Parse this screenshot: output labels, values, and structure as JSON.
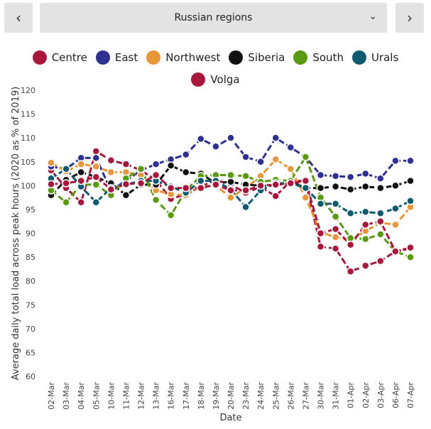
{
  "nav": {
    "prev_icon": "chevron-left-icon",
    "next_icon": "chevron-right-icon",
    "prev_glyph": "‹",
    "next_glyph": "›"
  },
  "selector": {
    "selected": "Russian regions",
    "icon": "chevron-down-icon",
    "glyph": "⌄"
  },
  "chart_data": {
    "type": "line",
    "title": "",
    "xlabel": "Date",
    "ylabel": "Average daily total load across peak hours (2020 as % of 2019)",
    "ylim": [
      60,
      120
    ],
    "yticks": [
      60,
      65,
      70,
      75,
      80,
      85,
      90,
      95,
      100,
      105,
      110,
      115,
      120
    ],
    "grid": false,
    "legend_position": "top",
    "categories": [
      "02-Mar",
      "03-Mar",
      "04-Mar",
      "05-Mar",
      "10-Mar",
      "11-Mar",
      "12-Mar",
      "13-Mar",
      "16-Mar",
      "17-Mar",
      "18-Mar",
      "19-Mar",
      "20-Mar",
      "23-Mar",
      "24-Mar",
      "25-Mar",
      "26-Mar",
      "27-Mar",
      "30-Mar",
      "31-Mar",
      "01-Apr",
      "02-Apr",
      "03-Apr",
      "06-Apr",
      "07-Apr"
    ],
    "series": [
      {
        "name": "Centre",
        "color": "#a8183c",
        "values": [
          103.2,
          99.5,
          96.5,
          107.2,
          105.3,
          104.5,
          103.2,
          101.2,
          97.2,
          98.2,
          99.8,
          101.2,
          100.2,
          98.5,
          99.7,
          97.8,
          101.0,
          101.0,
          87.2,
          86.8,
          82.0,
          83.2,
          84.2,
          86.2,
          86.8
        ]
      },
      {
        "name": "East",
        "color": "#2e3192",
        "values": [
          104.0,
          103.5,
          105.8,
          105.8,
          99.0,
          101.0,
          103.2,
          104.5,
          105.5,
          106.5,
          109.8,
          108.2,
          110.0,
          106.0,
          105.0,
          110.0,
          108.0,
          106.0,
          102.2,
          102.0,
          101.8,
          102.5,
          101.5,
          105.2,
          105.2
        ]
      },
      {
        "name": "Northwest",
        "color": "#e8963a",
        "values": [
          104.8,
          103.0,
          104.5,
          104.0,
          102.8,
          102.8,
          102.2,
          99.0,
          98.2,
          98.0,
          99.8,
          100.0,
          97.5,
          99.5,
          102.0,
          105.5,
          103.5,
          97.5,
          90.2,
          89.2,
          88.5,
          90.5,
          92.2,
          91.8,
          95.5
        ]
      },
      {
        "name": "Siberia",
        "color": "#111111",
        "values": [
          98.0,
          101.2,
          102.8,
          101.8,
          100.5,
          98.0,
          100.2,
          100.2,
          104.2,
          102.8,
          102.5,
          100.5,
          100.8,
          100.2,
          100.0,
          100.0,
          100.8,
          99.5,
          99.5,
          99.8,
          99.2,
          99.8,
          99.5,
          100.0,
          101.0
        ]
      },
      {
        "name": "South",
        "color": "#5a9a10",
        "values": [
          99.0,
          96.5,
          100.2,
          100.2,
          98.0,
          101.5,
          103.5,
          97.0,
          93.8,
          99.0,
          102.0,
          102.2,
          102.2,
          102.0,
          100.8,
          101.2,
          101.0,
          106.0,
          97.5,
          93.5,
          89.0,
          88.8,
          89.8,
          86.2,
          85.0
        ]
      },
      {
        "name": "Urals",
        "color": "#0e5a6e",
        "values": [
          101.5,
          103.5,
          99.8,
          96.5,
          99.5,
          100.2,
          101.0,
          101.0,
          99.8,
          98.5,
          101.0,
          101.0,
          99.2,
          95.5,
          99.0,
          100.5,
          100.5,
          99.5,
          96.2,
          96.2,
          94.2,
          94.5,
          94.2,
          95.2,
          96.8
        ]
      },
      {
        "name": "Volga",
        "color": "#a8183c",
        "values": [
          100.3,
          100.5,
          101.0,
          101.8,
          99.2,
          100.3,
          100.5,
          102.2,
          99.5,
          99.5,
          99.5,
          100.2,
          99.0,
          99.0,
          100.0,
          100.2,
          100.5,
          101.0,
          90.0,
          90.9,
          87.6,
          91.8,
          92.5,
          86.2,
          87.0
        ]
      }
    ]
  }
}
